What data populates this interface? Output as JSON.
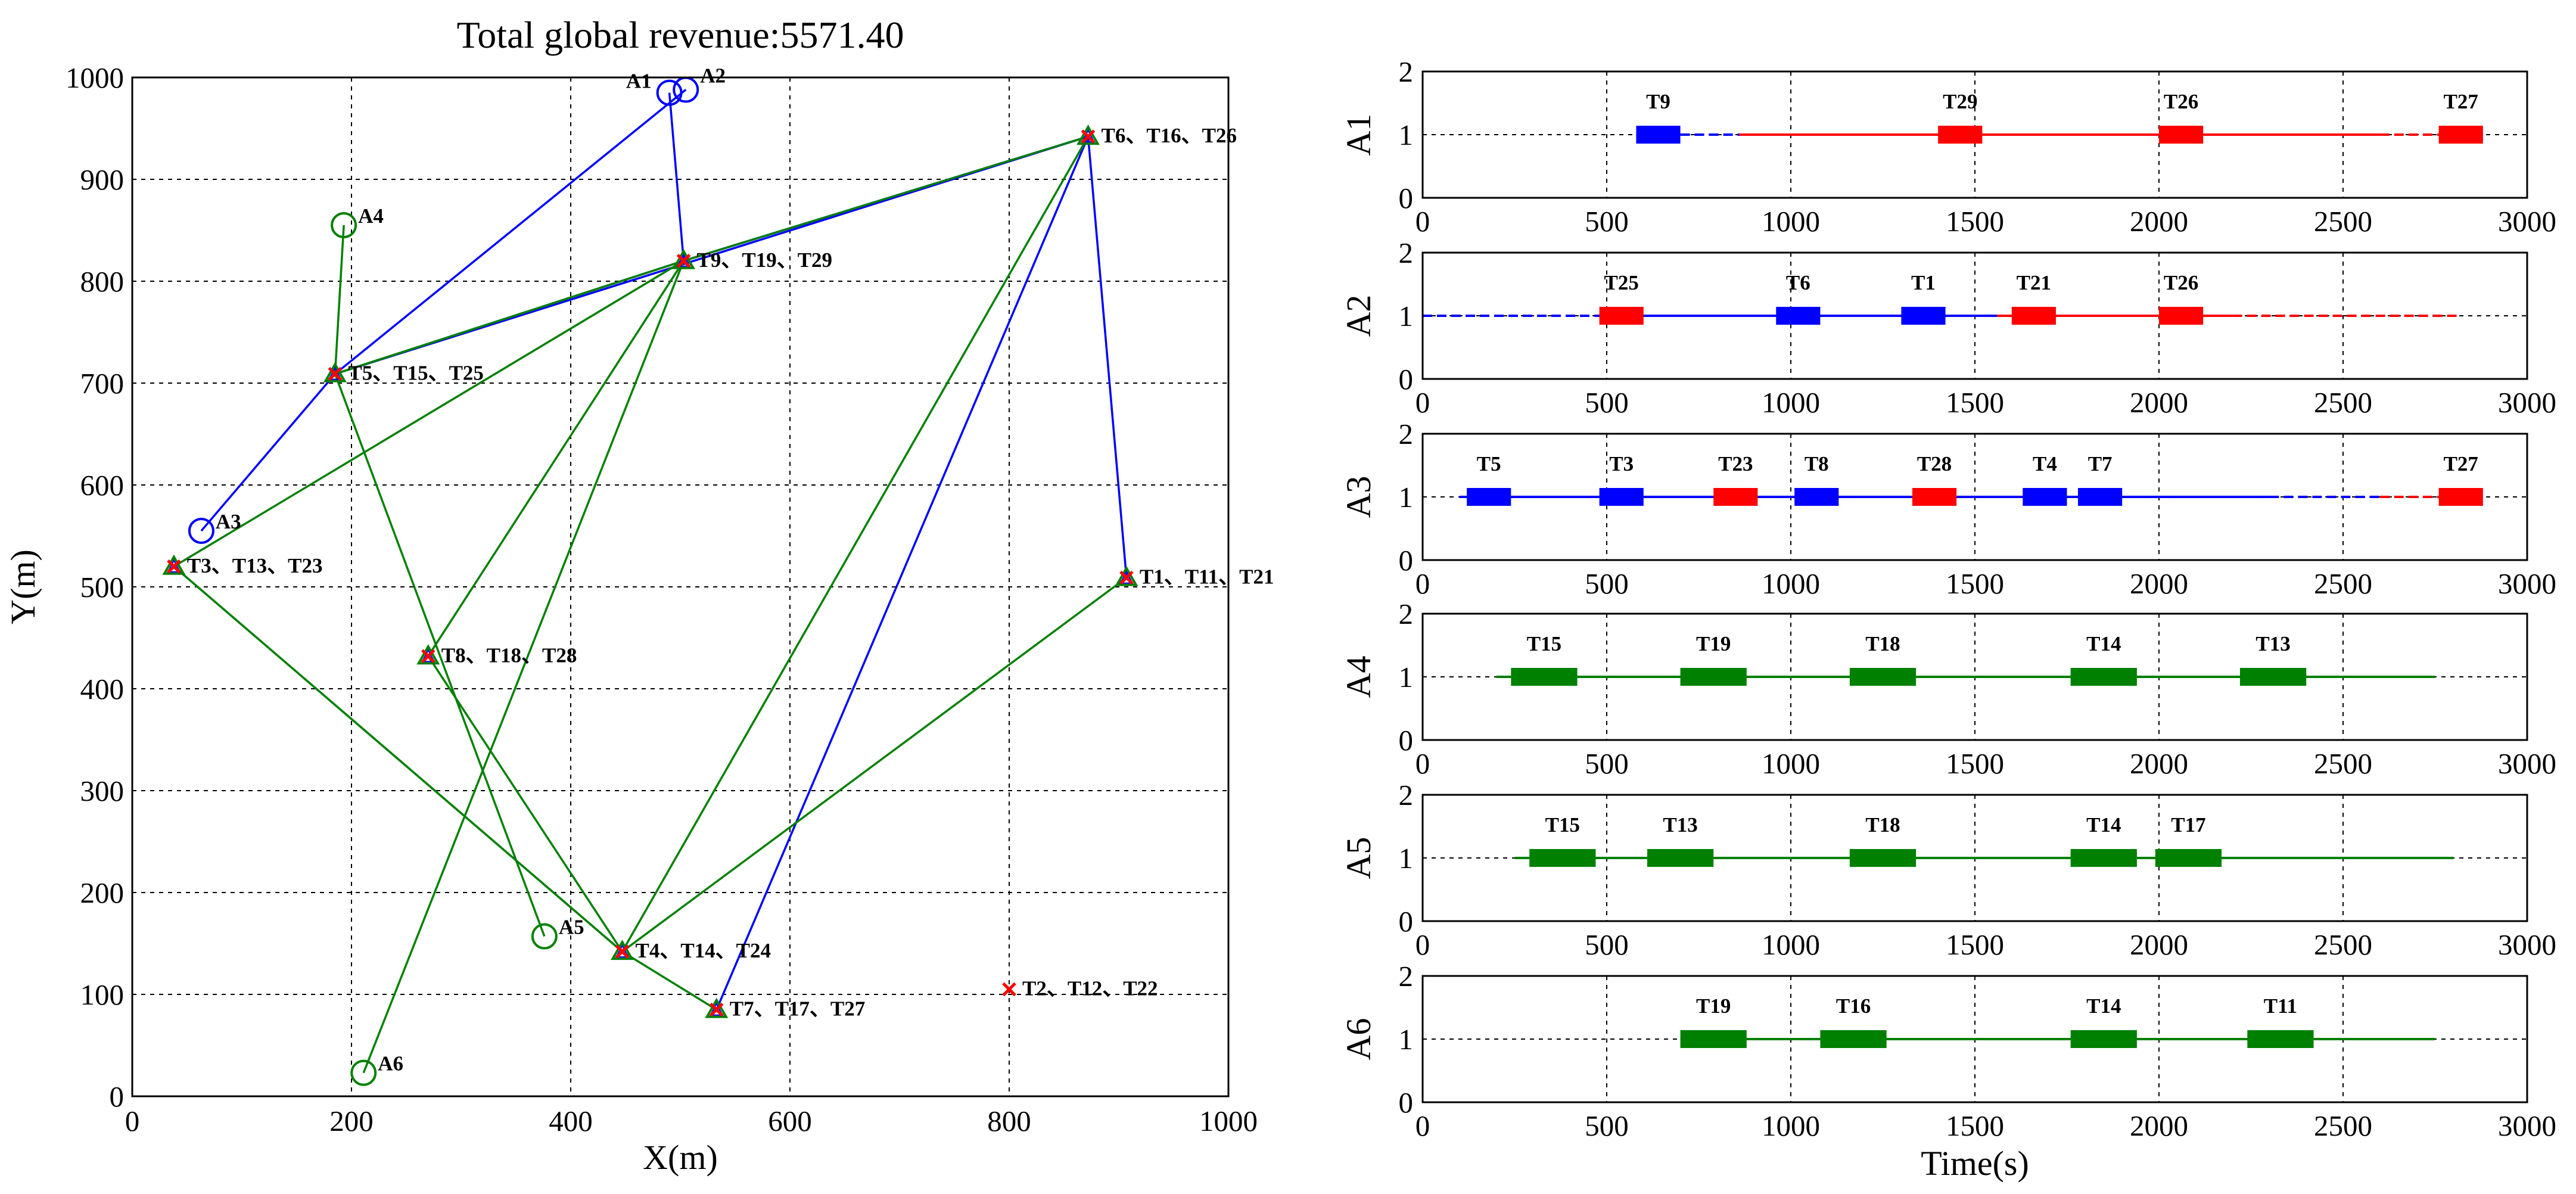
{
  "chart_data": [
    {
      "type": "scatter",
      "title": "Total global revenue:5571.40",
      "xlabel": "X(m)",
      "ylabel": "Y(m)",
      "xlim": [
        0,
        1000
      ],
      "ylim": [
        0,
        1000
      ],
      "xticks": [
        "0",
        "200",
        "400",
        "600",
        "800",
        "1000"
      ],
      "yticks": [
        "0",
        "100",
        "200",
        "300",
        "400",
        "500",
        "600",
        "700",
        "800",
        "900",
        "1000"
      ],
      "grid": true,
      "agents": [
        {
          "id": "A1",
          "x": 490,
          "y": 985,
          "color": "#0000ff"
        },
        {
          "id": "A2",
          "x": 505,
          "y": 988,
          "color": "#0000ff"
        },
        {
          "id": "A3",
          "x": 63,
          "y": 555,
          "color": "#0000ff"
        },
        {
          "id": "A4",
          "x": 193,
          "y": 855,
          "color": "#008000"
        },
        {
          "id": "A5",
          "x": 376,
          "y": 157,
          "color": "#008000"
        },
        {
          "id": "A6",
          "x": 211,
          "y": 23,
          "color": "#008000"
        }
      ],
      "targets": [
        {
          "label": "T1、T11、T21",
          "x": 907,
          "y": 509
        },
        {
          "label": "T2、T12、T22",
          "x": 800,
          "y": 105
        },
        {
          "label": "T3、T13、T23",
          "x": 38,
          "y": 520
        },
        {
          "label": "T4、T14、T24",
          "x": 447,
          "y": 142
        },
        {
          "label": "T5、T15、T25",
          "x": 185,
          "y": 709
        },
        {
          "label": "T6、T16、T26",
          "x": 872,
          "y": 942
        },
        {
          "label": "T7、T17、T27",
          "x": 533,
          "y": 85
        },
        {
          "label": "T8、T18、T28",
          "x": 270,
          "y": 432
        },
        {
          "label": "T9、T19、T29",
          "x": 503,
          "y": 820
        }
      ],
      "routes": [
        {
          "color": "#0000ff",
          "points": [
            [
              490,
              985
            ],
            [
              503,
              820
            ],
            [
              872,
              942
            ],
            [
              533,
              85
            ]
          ]
        },
        {
          "color": "#0000ff",
          "points": [
            [
              505,
              988
            ],
            [
              185,
              709
            ],
            [
              872,
              942
            ],
            [
              907,
              509
            ]
          ]
        },
        {
          "color": "#0000ff",
          "points": [
            [
              63,
              555
            ],
            [
              185,
              709
            ],
            [
              503,
              820
            ],
            [
              872,
              942
            ]
          ]
        },
        {
          "color": "#008000",
          "points": [
            [
              193,
              855
            ],
            [
              185,
              709
            ],
            [
              503,
              820
            ],
            [
              270,
              432
            ],
            [
              447,
              142
            ],
            [
              38,
              520
            ]
          ]
        },
        {
          "color": "#008000",
          "points": [
            [
              376,
              157
            ],
            [
              185,
              709
            ],
            [
              503,
              820
            ],
            [
              38,
              520
            ],
            [
              447,
              142
            ],
            [
              533,
              85
            ]
          ]
        },
        {
          "color": "#008000",
          "points": [
            [
              211,
              23
            ],
            [
              503,
              820
            ],
            [
              872,
              942
            ],
            [
              447,
              142
            ],
            [
              907,
              509
            ]
          ]
        }
      ]
    },
    {
      "type": "gantt",
      "xlabel": "Time(s)",
      "xlim": [
        0,
        3000
      ],
      "ylim": [
        0,
        2
      ],
      "xticks": [
        "0",
        "500",
        "1000",
        "1500",
        "2000",
        "2500",
        "3000"
      ],
      "yticks": [
        "0",
        "1",
        "2"
      ],
      "grid": true,
      "rows": [
        {
          "agent": "A1",
          "lines": [
            {
              "start": 580,
              "end": 700,
              "color": "#0000ff",
              "style": "solid"
            },
            {
              "start": 700,
              "end": 860,
              "color": "#0000ff",
              "style": "dashed"
            },
            {
              "start": 860,
              "end": 2600,
              "color": "#ff0000",
              "style": "solid"
            },
            {
              "start": 2600,
              "end": 2880,
              "color": "#ff0000",
              "style": "dashed"
            }
          ],
          "tasks": [
            {
              "label": "T9",
              "start": 580,
              "end": 700,
              "color": "#0000ff"
            },
            {
              "label": "T29",
              "start": 1400,
              "end": 1520,
              "color": "#ff0000"
            },
            {
              "label": "T26",
              "start": 2000,
              "end": 2120,
              "color": "#ff0000"
            },
            {
              "label": "T27",
              "start": 2760,
              "end": 2880,
              "color": "#ff0000"
            }
          ]
        },
        {
          "agent": "A2",
          "lines": [
            {
              "start": 0,
              "end": 480,
              "color": "#0000ff",
              "style": "dashed"
            },
            {
              "start": 480,
              "end": 1560,
              "color": "#0000ff",
              "style": "solid"
            },
            {
              "start": 1560,
              "end": 2200,
              "color": "#ff0000",
              "style": "solid"
            },
            {
              "start": 2200,
              "end": 2820,
              "color": "#ff0000",
              "style": "dashed"
            }
          ],
          "tasks": [
            {
              "label": "T25",
              "start": 480,
              "end": 600,
              "color": "#ff0000"
            },
            {
              "label": "T6",
              "start": 960,
              "end": 1080,
              "color": "#0000ff"
            },
            {
              "label": "T1",
              "start": 1300,
              "end": 1420,
              "color": "#0000ff"
            },
            {
              "label": "T21",
              "start": 1600,
              "end": 1720,
              "color": "#ff0000"
            },
            {
              "label": "T26",
              "start": 2000,
              "end": 2120,
              "color": "#ff0000"
            }
          ]
        },
        {
          "agent": "A3",
          "lines": [
            {
              "start": 100,
              "end": 2300,
              "color": "#0000ff",
              "style": "solid"
            },
            {
              "start": 2300,
              "end": 2600,
              "color": "#0000ff",
              "style": "dashed"
            },
            {
              "start": 2600,
              "end": 2880,
              "color": "#ff0000",
              "style": "dashed"
            }
          ],
          "tasks": [
            {
              "label": "T5",
              "start": 120,
              "end": 240,
              "color": "#0000ff"
            },
            {
              "label": "T3",
              "start": 480,
              "end": 600,
              "color": "#0000ff"
            },
            {
              "label": "T23",
              "start": 790,
              "end": 910,
              "color": "#ff0000"
            },
            {
              "label": "T8",
              "start": 1010,
              "end": 1130,
              "color": "#0000ff"
            },
            {
              "label": "T28",
              "start": 1330,
              "end": 1450,
              "color": "#ff0000"
            },
            {
              "label": "T4",
              "start": 1630,
              "end": 1750,
              "color": "#0000ff"
            },
            {
              "label": "T7",
              "start": 1780,
              "end": 1900,
              "color": "#0000ff"
            },
            {
              "label": "T27",
              "start": 2760,
              "end": 2880,
              "color": "#ff0000"
            }
          ]
        },
        {
          "agent": "A4",
          "lines": [
            {
              "start": 200,
              "end": 2750,
              "color": "#008000",
              "style": "solid"
            }
          ],
          "tasks": [
            {
              "label": "T15",
              "start": 240,
              "end": 420,
              "color": "#008000"
            },
            {
              "label": "T19",
              "start": 700,
              "end": 880,
              "color": "#008000"
            },
            {
              "label": "T18",
              "start": 1160,
              "end": 1340,
              "color": "#008000"
            },
            {
              "label": "T14",
              "start": 1760,
              "end": 1940,
              "color": "#008000"
            },
            {
              "label": "T13",
              "start": 2220,
              "end": 2400,
              "color": "#008000"
            }
          ]
        },
        {
          "agent": "A5",
          "lines": [
            {
              "start": 250,
              "end": 2800,
              "color": "#008000",
              "style": "solid"
            }
          ],
          "tasks": [
            {
              "label": "T15",
              "start": 290,
              "end": 470,
              "color": "#008000"
            },
            {
              "label": "T13",
              "start": 610,
              "end": 790,
              "color": "#008000"
            },
            {
              "label": "T18",
              "start": 1160,
              "end": 1340,
              "color": "#008000"
            },
            {
              "label": "T14",
              "start": 1760,
              "end": 1940,
              "color": "#008000"
            },
            {
              "label": "T17",
              "start": 1990,
              "end": 2170,
              "color": "#008000"
            }
          ]
        },
        {
          "agent": "A6",
          "lines": [
            {
              "start": 700,
              "end": 2750,
              "color": "#008000",
              "style": "solid"
            }
          ],
          "tasks": [
            {
              "label": "T19",
              "start": 700,
              "end": 880,
              "color": "#008000"
            },
            {
              "label": "T16",
              "start": 1080,
              "end": 1260,
              "color": "#008000"
            },
            {
              "label": "T14",
              "start": 1760,
              "end": 1940,
              "color": "#008000"
            },
            {
              "label": "T11",
              "start": 2240,
              "end": 2420,
              "color": "#008000"
            }
          ]
        }
      ]
    }
  ]
}
